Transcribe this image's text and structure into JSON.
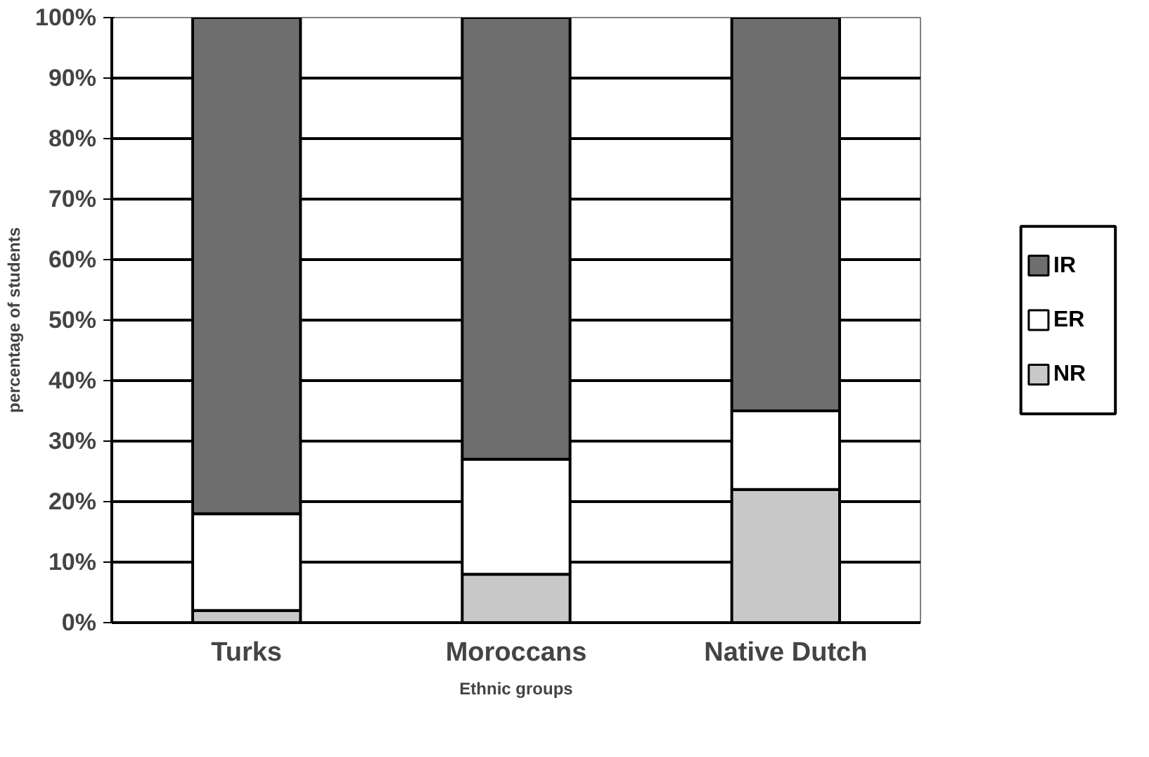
{
  "chart_data": {
    "type": "bar",
    "stacked": true,
    "xlabel": "Ethnic groups",
    "ylabel": "percentage of students",
    "categories": [
      "Turks",
      "Moroccans",
      "Native Dutch"
    ],
    "series": [
      {
        "name": "NR",
        "color": "#c8c8c8",
        "values": [
          2,
          8,
          22
        ]
      },
      {
        "name": "ER",
        "color": "#ffffff",
        "values": [
          16,
          19,
          13
        ]
      },
      {
        "name": "IR",
        "color": "#6e6e6e",
        "values": [
          82,
          73,
          65
        ]
      }
    ],
    "ylim": [
      0,
      100
    ],
    "yticks": [
      {
        "value": 0,
        "label": "0%"
      },
      {
        "value": 10,
        "label": "10%"
      },
      {
        "value": 20,
        "label": "20%"
      },
      {
        "value": 30,
        "label": "30%"
      },
      {
        "value": 40,
        "label": "40%"
      },
      {
        "value": 50,
        "label": "50%"
      },
      {
        "value": 60,
        "label": "60%"
      },
      {
        "value": 70,
        "label": "70%"
      },
      {
        "value": 80,
        "label": "80%"
      },
      {
        "value": 90,
        "label": "90%"
      },
      {
        "value": 100,
        "label": "100%"
      }
    ],
    "grid": "y",
    "legend": "right"
  }
}
